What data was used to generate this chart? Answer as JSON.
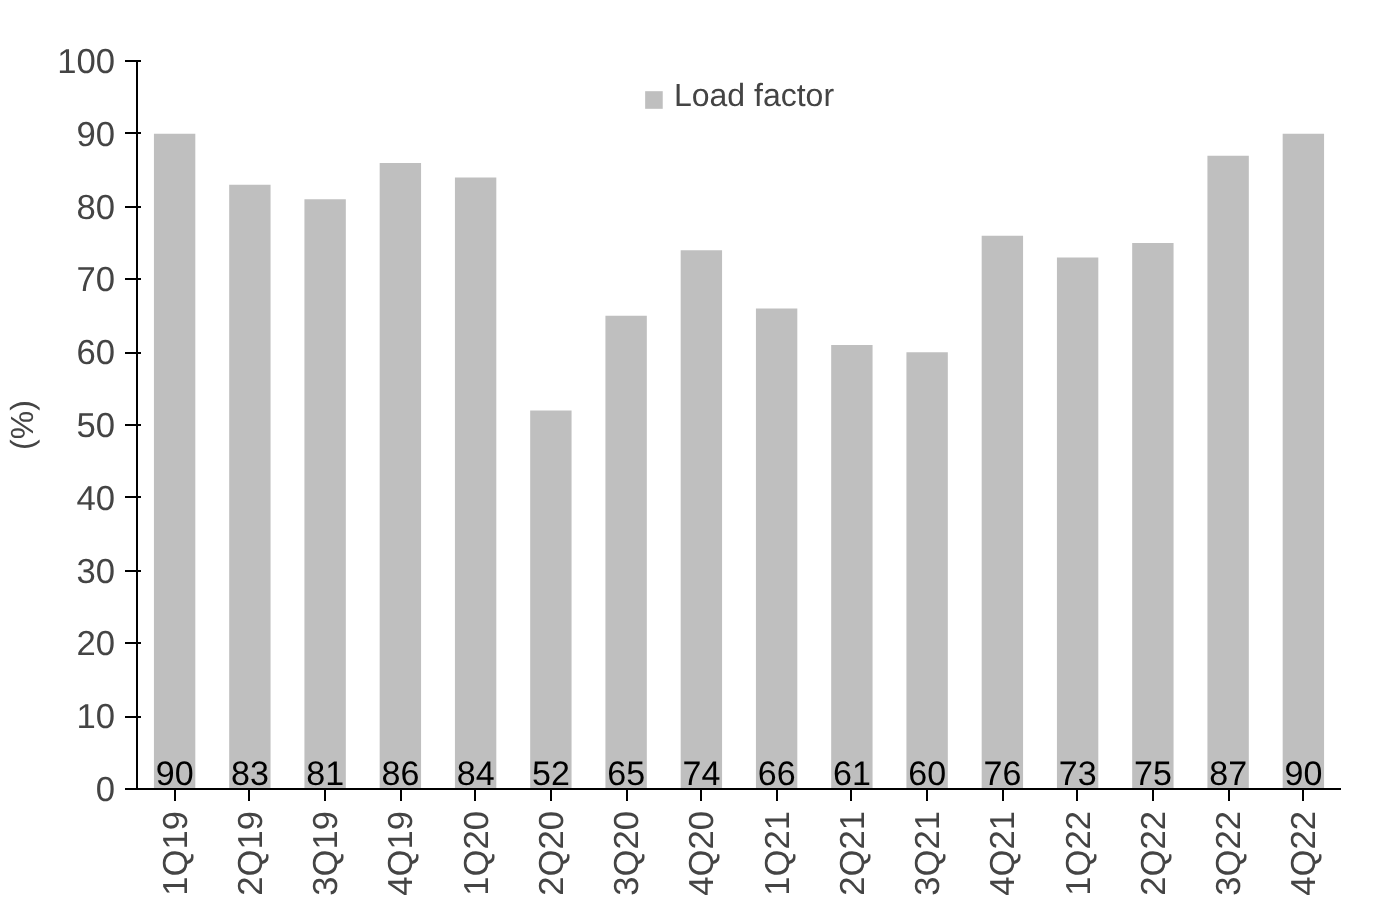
{
  "chart_data": {
    "type": "bar",
    "ylabel": "(%)",
    "categories": [
      "1Q19",
      "2Q19",
      "3Q19",
      "4Q19",
      "1Q20",
      "2Q20",
      "3Q20",
      "4Q20",
      "1Q21",
      "2Q21",
      "3Q21",
      "4Q21",
      "1Q22",
      "2Q22",
      "3Q22",
      "4Q22"
    ],
    "series": [
      {
        "name": "Load factor",
        "color": "#bfbfbf",
        "values": [
          90,
          83,
          81,
          86,
          84,
          52,
          65,
          74,
          66,
          61,
          60,
          76,
          73,
          75,
          87,
          90
        ]
      }
    ],
    "ylim": [
      0,
      100
    ],
    "yticks": [
      0,
      10,
      20,
      30,
      40,
      50,
      60,
      70,
      80,
      90,
      100
    ],
    "data_labels": true,
    "grid": false,
    "legend": "top"
  }
}
